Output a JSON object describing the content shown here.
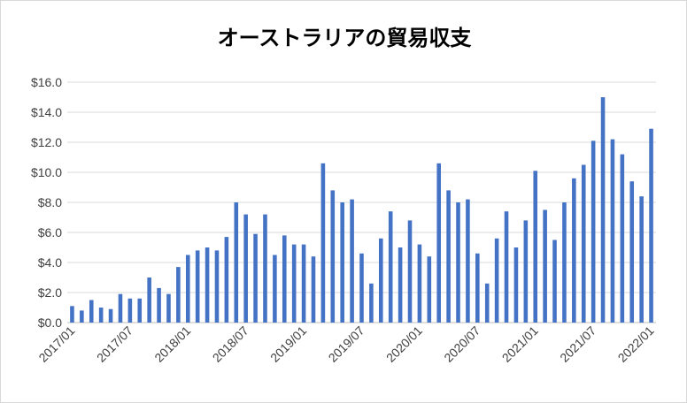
{
  "chart_data": {
    "type": "bar",
    "title": "オーストラリアの貿易収支",
    "xlabel": "",
    "ylabel": "",
    "ylim": [
      0,
      16
    ],
    "grid": true,
    "y_ticks": [
      "$0.0",
      "$2.0",
      "$4.0",
      "$6.0",
      "$8.0",
      "$10.0",
      "$12.0",
      "$14.0",
      "$16.0"
    ],
    "x_tick_labels": [
      "2017/01",
      "2017/07",
      "2018/01",
      "2018/07",
      "2019/01",
      "2019/07",
      "2020/01",
      "2020/07",
      "2021/01",
      "2021/07",
      "2022/01"
    ],
    "categories": [
      "2017/01",
      "2017/02",
      "2017/03",
      "2017/04",
      "2017/05",
      "2017/06",
      "2017/07",
      "2017/08",
      "2017/09",
      "2017/10",
      "2017/11",
      "2017/12",
      "2018/01",
      "2018/02",
      "2018/03",
      "2018/04",
      "2018/05",
      "2018/06",
      "2018/07",
      "2018/08",
      "2018/09",
      "2018/10",
      "2018/11",
      "2018/12",
      "2019/01",
      "2019/02",
      "2019/03",
      "2019/04",
      "2019/05",
      "2019/06",
      "2019/07",
      "2019/08",
      "2019/09",
      "2019/10",
      "2019/11",
      "2019/12",
      "2020/01",
      "2020/02",
      "2020/03",
      "2020/04",
      "2020/05",
      "2020/06",
      "2020/07",
      "2020/08",
      "2020/09",
      "2020/10",
      "2020/11",
      "2020/12",
      "2021/01",
      "2021/02",
      "2021/03",
      "2021/04",
      "2021/05",
      "2021/06",
      "2021/07",
      "2021/08",
      "2021/09",
      "2021/10",
      "2021/11",
      "2021/12",
      "2022/01"
    ],
    "values": [
      1.1,
      0.8,
      1.5,
      1.0,
      0.9,
      1.9,
      1.6,
      1.6,
      3.0,
      2.3,
      1.9,
      3.7,
      4.5,
      4.8,
      5.0,
      4.8,
      5.7,
      8.0,
      7.2,
      5.9,
      7.2,
      4.5,
      5.8,
      5.2,
      5.2,
      4.4,
      10.6,
      8.8,
      8.0,
      8.2,
      4.6,
      2.6,
      5.6,
      7.4,
      5.0,
      6.8,
      5.2,
      4.4,
      10.6,
      8.8,
      8.0,
      8.2,
      4.6,
      2.6,
      5.6,
      7.4,
      5.0,
      6.8,
      10.1,
      7.5,
      5.5,
      8.0,
      9.6,
      10.5,
      12.1,
      15.0,
      12.2,
      11.2,
      9.4,
      8.4,
      12.9
    ],
    "colors": {
      "bar": "#4472c4",
      "grid": "#d9d9d9",
      "axis": "#bfbfbf"
    }
  }
}
